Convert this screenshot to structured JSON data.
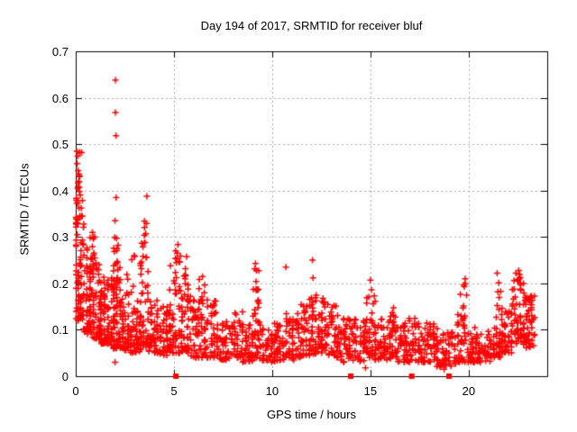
{
  "page": {
    "background": "#ffffff"
  },
  "chart_data": {
    "type": "scatter",
    "title": "Day 194 of 2017, SRMTID for receiver bluf",
    "xlabel": "GPS time / hours",
    "ylabel": "SRMTID / TECUs",
    "xlim": [
      0,
      24
    ],
    "ylim": [
      0,
      0.7
    ],
    "xticks": [
      {
        "v": 0,
        "label": "0"
      },
      {
        "v": 5,
        "label": "5"
      },
      {
        "v": 10,
        "label": "10"
      },
      {
        "v": 15,
        "label": "15"
      },
      {
        "v": 20,
        "label": "20"
      }
    ],
    "yticks": [
      {
        "v": 0,
        "label": "0"
      },
      {
        "v": 0.1,
        "label": "0.1"
      },
      {
        "v": 0.2,
        "label": "0.2"
      },
      {
        "v": 0.3,
        "label": "0.3"
      },
      {
        "v": 0.4,
        "label": "0.4"
      },
      {
        "v": 0.5,
        "label": "0.5"
      },
      {
        "v": 0.6,
        "label": "0.6"
      },
      {
        "v": 0.7,
        "label": "0.7"
      }
    ],
    "grid": true,
    "grid_color": "#aaaaaa",
    "border_color": "#000000",
    "text_color": "#000000",
    "legend": "none",
    "series": [
      {
        "name": "srmtid",
        "marker": "plus",
        "color": "#ff0000",
        "outlier_points": [
          [
            0.05,
            0.485
          ],
          [
            0.1,
            0.474
          ],
          [
            0.07,
            0.458
          ],
          [
            0.3,
            0.482
          ],
          [
            0.12,
            0.443
          ],
          [
            0.16,
            0.432
          ],
          [
            0.1,
            0.405
          ],
          [
            0.19,
            0.398
          ],
          [
            0.23,
            0.39
          ],
          [
            0.08,
            0.375
          ],
          [
            0.28,
            0.362
          ],
          [
            0.33,
            0.345
          ],
          [
            2.02,
            0.638
          ],
          [
            2.02,
            0.568
          ],
          [
            2.05,
            0.518
          ],
          [
            2.06,
            0.385
          ],
          [
            2.0,
            0.335
          ],
          [
            2.1,
            0.275
          ],
          [
            2.04,
            0.242
          ],
          [
            2.12,
            0.212
          ],
          [
            3.62,
            0.388
          ],
          [
            0.85,
            0.31
          ],
          [
            0.9,
            0.296
          ],
          [
            9.15,
            0.243
          ],
          [
            9.2,
            0.228
          ],
          [
            10.7,
            0.235
          ],
          [
            10.72,
            0.135
          ],
          [
            12.05,
            0.25
          ],
          [
            12.08,
            0.212
          ],
          [
            15.0,
            0.207
          ],
          [
            15.05,
            0.186
          ],
          [
            19.82,
            0.21
          ],
          [
            22.55,
            0.228
          ],
          [
            21.45,
            0.222
          ],
          [
            14.75,
            0.018
          ],
          [
            18.75,
            0.015
          ],
          [
            19.1,
            0.022
          ],
          [
            2.0,
            0.03
          ]
        ],
        "density_bands": [
          [
            0.0,
            0.4,
            70,
            0.12,
            0.345,
            1.3
          ],
          [
            0.02,
            0.35,
            16,
            0.33,
            0.49,
            1.5
          ],
          [
            0.4,
            0.9,
            62,
            0.09,
            0.28,
            1.5
          ],
          [
            0.75,
            0.95,
            8,
            0.25,
            0.315,
            1.2
          ],
          [
            0.9,
            1.3,
            55,
            0.08,
            0.245,
            1.5
          ],
          [
            1.3,
            1.8,
            55,
            0.07,
            0.215,
            1.5
          ],
          [
            1.8,
            2.25,
            75,
            0.06,
            0.3,
            1.6
          ],
          [
            2.25,
            2.8,
            50,
            0.055,
            0.185,
            1.5
          ],
          [
            2.6,
            3.0,
            7,
            0.17,
            0.26,
            1.2
          ],
          [
            2.8,
            3.3,
            48,
            0.05,
            0.165,
            1.5
          ],
          [
            3.3,
            3.7,
            42,
            0.06,
            0.285,
            1.7
          ],
          [
            3.38,
            3.62,
            8,
            0.285,
            0.335,
            1.2
          ],
          [
            3.7,
            4.3,
            52,
            0.05,
            0.165,
            1.5
          ],
          [
            4.3,
            4.8,
            45,
            0.045,
            0.155,
            1.5
          ],
          [
            4.8,
            5.4,
            55,
            0.05,
            0.25,
            1.7
          ],
          [
            5.05,
            5.3,
            9,
            0.24,
            0.302,
            1.2
          ],
          [
            5.4,
            5.85,
            40,
            0.05,
            0.21,
            1.6
          ],
          [
            5.45,
            5.7,
            6,
            0.21,
            0.26,
            1.2
          ],
          [
            5.85,
            6.4,
            45,
            0.04,
            0.175,
            1.5
          ],
          [
            6.3,
            6.55,
            6,
            0.17,
            0.215,
            1.2
          ],
          [
            6.4,
            7.2,
            60,
            0.04,
            0.165,
            1.5
          ],
          [
            7.2,
            8.1,
            62,
            0.035,
            0.125,
            1.4
          ],
          [
            8.1,
            8.5,
            30,
            0.04,
            0.155,
            1.5
          ],
          [
            8.5,
            9.0,
            40,
            0.03,
            0.115,
            1.4
          ],
          [
            9.0,
            9.4,
            35,
            0.04,
            0.19,
            1.6
          ],
          [
            9.05,
            9.3,
            7,
            0.185,
            0.235,
            1.2
          ],
          [
            9.4,
            10.4,
            68,
            0.03,
            0.115,
            1.4
          ],
          [
            10.4,
            11.2,
            52,
            0.035,
            0.125,
            1.4
          ],
          [
            11.2,
            11.6,
            30,
            0.04,
            0.155,
            1.5
          ],
          [
            11.6,
            12.2,
            45,
            0.045,
            0.17,
            1.5
          ],
          [
            12.2,
            12.7,
            42,
            0.05,
            0.175,
            1.3
          ],
          [
            12.7,
            13.5,
            55,
            0.04,
            0.155,
            1.5
          ],
          [
            13.5,
            14.8,
            85,
            0.03,
            0.125,
            1.4
          ],
          [
            14.8,
            15.25,
            35,
            0.04,
            0.175,
            1.5
          ],
          [
            15.25,
            16.0,
            50,
            0.035,
            0.125,
            1.4
          ],
          [
            16.0,
            16.4,
            30,
            0.04,
            0.16,
            1.5
          ],
          [
            16.4,
            17.6,
            80,
            0.03,
            0.125,
            1.4
          ],
          [
            17.6,
            18.4,
            55,
            0.03,
            0.115,
            1.4
          ],
          [
            18.4,
            19.3,
            55,
            0.02,
            0.095,
            1.3
          ],
          [
            19.3,
            19.95,
            38,
            0.03,
            0.135,
            1.4
          ],
          [
            19.6,
            19.9,
            7,
            0.13,
            0.2,
            1.2
          ],
          [
            19.95,
            21.3,
            85,
            0.03,
            0.105,
            1.4
          ],
          [
            21.3,
            21.7,
            30,
            0.04,
            0.15,
            1.5
          ],
          [
            21.4,
            21.65,
            5,
            0.15,
            0.225,
            1.3
          ],
          [
            21.7,
            22.2,
            40,
            0.05,
            0.14,
            1.4
          ],
          [
            22.2,
            22.8,
            52,
            0.07,
            0.21,
            1.3
          ],
          [
            22.4,
            22.7,
            6,
            0.195,
            0.235,
            1.2
          ],
          [
            22.8,
            23.35,
            58,
            0.06,
            0.175,
            1.2
          ]
        ]
      },
      {
        "name": "axis-flags",
        "marker": "filled-square",
        "color": "#ff0000",
        "points": [
          [
            5.1,
            0
          ],
          [
            14.0,
            0
          ],
          [
            17.1,
            0
          ],
          [
            19.0,
            0
          ]
        ]
      }
    ]
  }
}
